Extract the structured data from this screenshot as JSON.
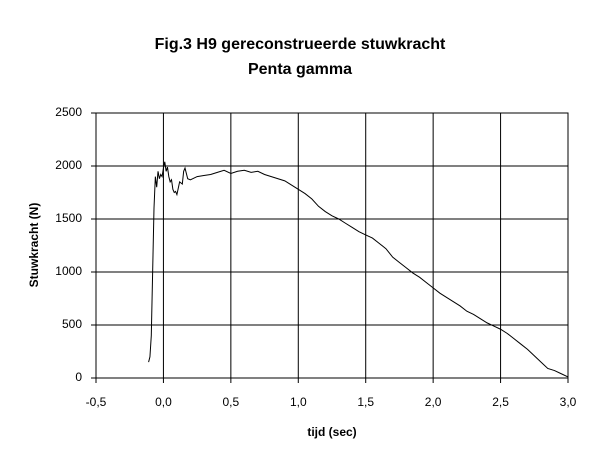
{
  "chart_data": {
    "type": "line",
    "title": "Fig.3  H9 gereconstrueerde stuwkracht",
    "subtitle": "Penta gamma",
    "x_label": "tijd (sec)",
    "y_label": "Stuwkracht (N)",
    "x": [
      -0.11,
      -0.1,
      -0.09,
      -0.08,
      -0.07,
      -0.06,
      -0.05,
      -0.04,
      -0.03,
      -0.02,
      -0.01,
      0.0,
      0.01,
      0.02,
      0.03,
      0.04,
      0.05,
      0.06,
      0.07,
      0.08,
      0.09,
      0.1,
      0.12,
      0.14,
      0.15,
      0.16,
      0.18,
      0.2,
      0.25,
      0.3,
      0.35,
      0.4,
      0.45,
      0.5,
      0.55,
      0.6,
      0.65,
      0.7,
      0.75,
      0.8,
      0.85,
      0.9,
      0.95,
      1.0,
      1.05,
      1.1,
      1.15,
      1.2,
      1.25,
      1.3,
      1.35,
      1.4,
      1.45,
      1.5,
      1.55,
      1.6,
      1.65,
      1.7,
      1.75,
      1.8,
      1.85,
      1.9,
      1.95,
      2.0,
      2.05,
      2.1,
      2.15,
      2.2,
      2.25,
      2.3,
      2.35,
      2.4,
      2.45,
      2.5,
      2.55,
      2.6,
      2.65,
      2.7,
      2.75,
      2.8,
      2.85,
      2.9,
      2.95,
      3.0
    ],
    "values": [
      150,
      200,
      400,
      1000,
      1600,
      1900,
      1800,
      1950,
      1880,
      1920,
      1900,
      1980,
      2040,
      1950,
      1990,
      1900,
      1850,
      1870,
      1780,
      1750,
      1760,
      1730,
      1850,
      1830,
      1950,
      1980,
      1880,
      1870,
      1900,
      1910,
      1920,
      1940,
      1960,
      1930,
      1950,
      1960,
      1940,
      1950,
      1920,
      1900,
      1880,
      1860,
      1820,
      1780,
      1740,
      1690,
      1620,
      1570,
      1530,
      1500,
      1460,
      1420,
      1380,
      1350,
      1320,
      1270,
      1220,
      1140,
      1090,
      1040,
      990,
      950,
      900,
      850,
      800,
      760,
      720,
      680,
      630,
      600,
      560,
      520,
      490,
      460,
      420,
      370,
      320,
      270,
      210,
      150,
      90,
      70,
      40,
      10
    ],
    "color": "#000000",
    "xlim": [
      -0.5,
      3.0
    ],
    "xticks": [
      {
        "value": -0.5,
        "label": "-0,5"
      },
      {
        "value": 0.0,
        "label": "0,0"
      },
      {
        "value": 0.5,
        "label": "0,5"
      },
      {
        "value": 1.0,
        "label": "1,0"
      },
      {
        "value": 1.5,
        "label": "1,5"
      },
      {
        "value": 2.0,
        "label": "2,0"
      },
      {
        "value": 2.5,
        "label": "2,5"
      },
      {
        "value": 3.0,
        "label": "3,0"
      }
    ],
    "ylim": [
      0,
      2500
    ],
    "yticks": [
      0,
      500,
      1000,
      1500,
      2000,
      2500
    ],
    "grid": true
  }
}
